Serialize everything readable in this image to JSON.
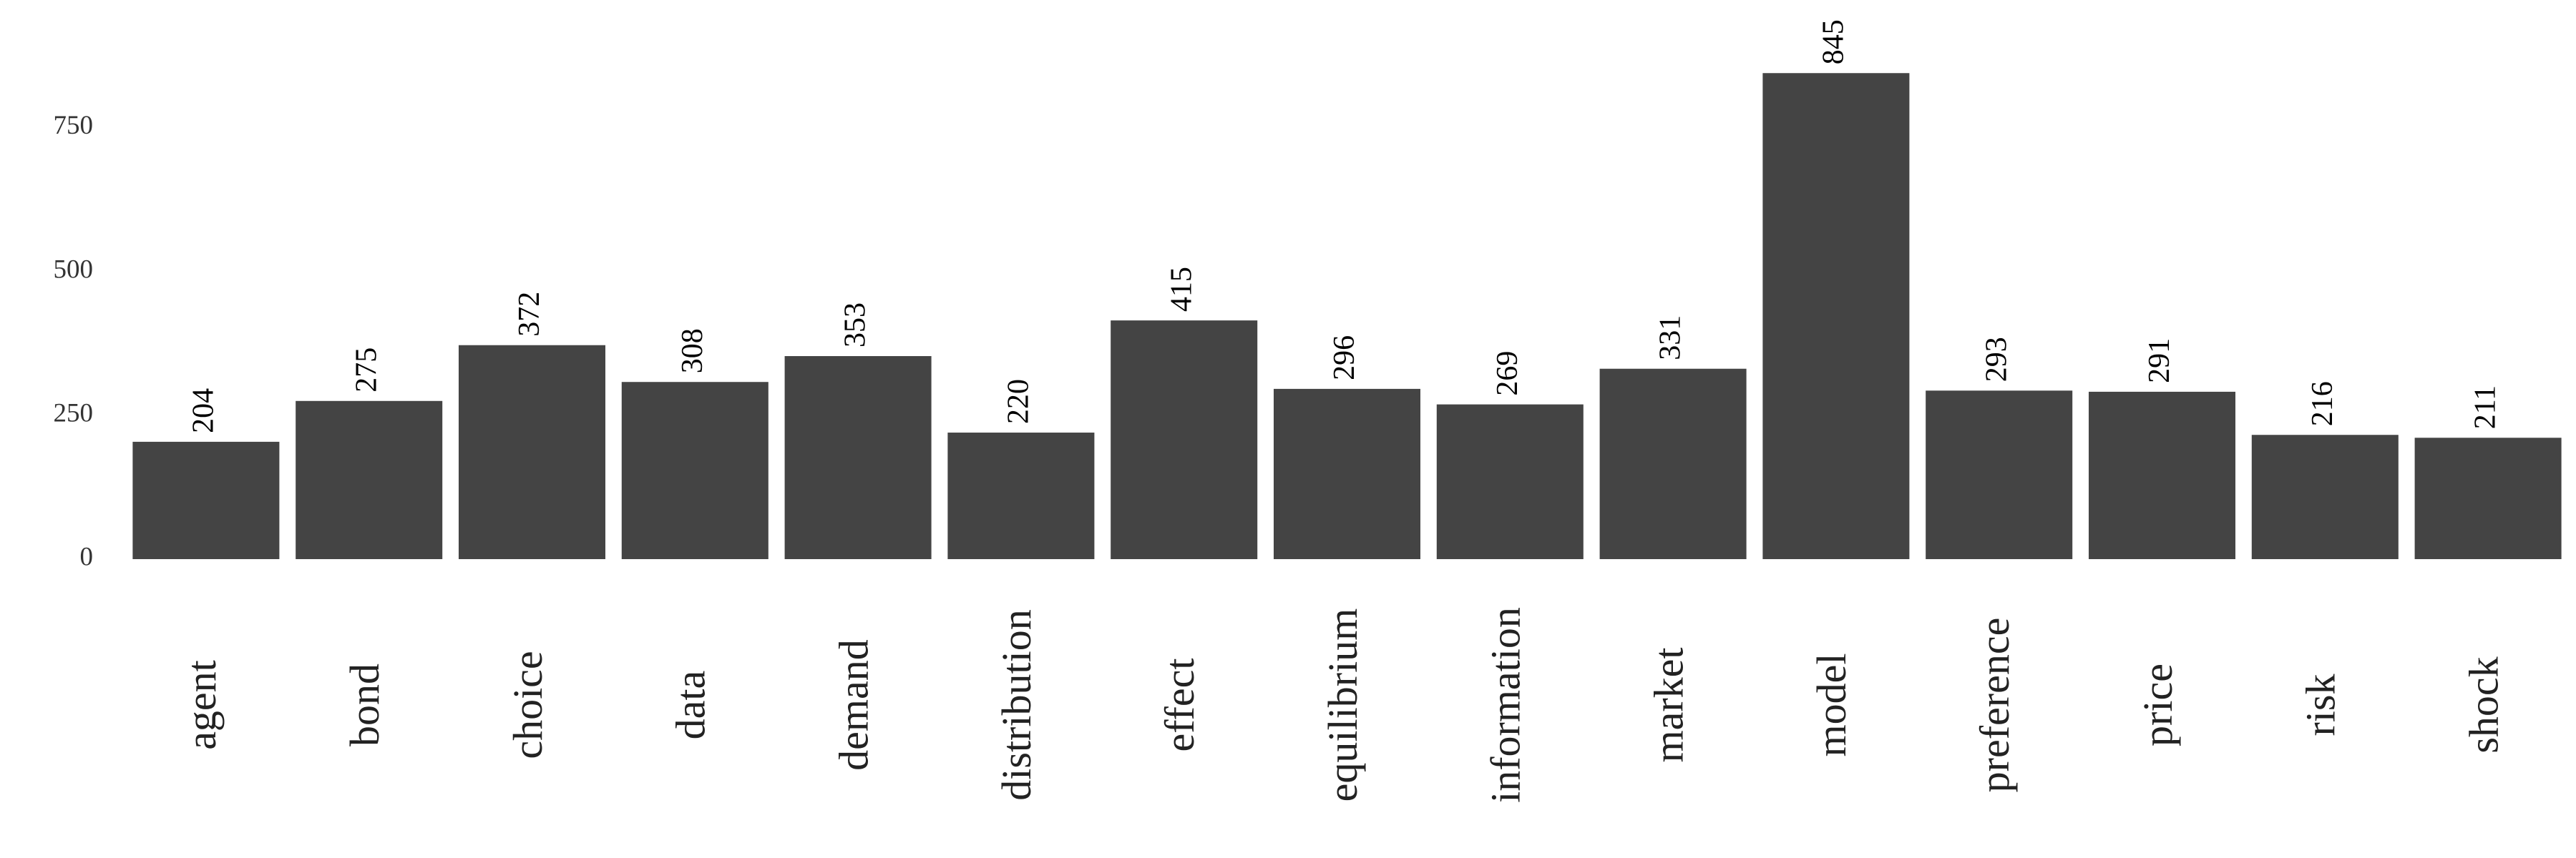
{
  "chart_data": {
    "type": "bar",
    "categories": [
      "agent",
      "bond",
      "choice",
      "data",
      "demand",
      "distribution",
      "effect",
      "equilibrium",
      "information",
      "market",
      "model",
      "preference",
      "price",
      "risk",
      "shock"
    ],
    "values": [
      204,
      275,
      372,
      308,
      353,
      220,
      415,
      296,
      269,
      331,
      845,
      293,
      291,
      216,
      211
    ],
    "color": "#444444",
    "ylim": [
      0,
      900
    ],
    "yticks": [
      0,
      250,
      500,
      750
    ],
    "grid": false
  }
}
